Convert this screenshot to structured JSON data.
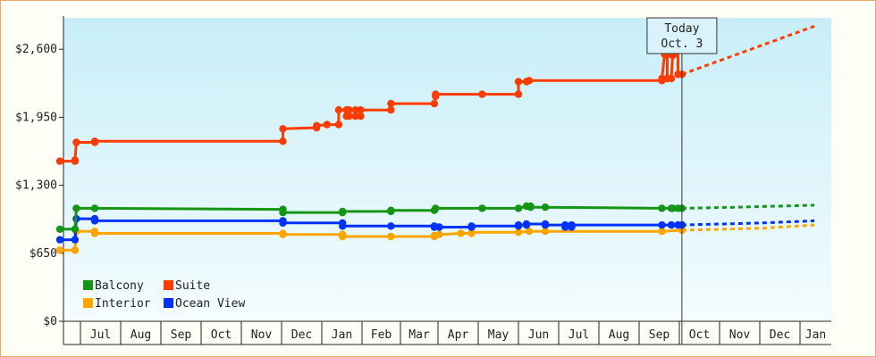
{
  "chart_data": {
    "type": "line",
    "title": "",
    "xlabel": "",
    "ylabel": "",
    "ylim": [
      0,
      2900
    ],
    "y_ticks": [
      {
        "value": 0,
        "label": "$0"
      },
      {
        "value": 650,
        "label": "$650"
      },
      {
        "value": 1300,
        "label": "$1,300"
      },
      {
        "value": 1950,
        "label": "$1,950"
      },
      {
        "value": 2600,
        "label": "$2,600"
      }
    ],
    "x_range_days": [
      -5,
      196
    ],
    "month_ticks": [
      {
        "label": "Jul",
        "day": 0
      },
      {
        "label": "Aug",
        "day": 31
      },
      {
        "label": "Sep",
        "day": 62
      },
      {
        "label": "Oct",
        "day": 92
      },
      {
        "label": "Nov",
        "day": 123
      },
      {
        "label": "Dec",
        "day": 153
      },
      {
        "label": "Jan",
        "day": 184
      },
      {
        "label": "Feb",
        "day": 215
      },
      {
        "label": "Mar",
        "day": 243
      },
      {
        "label": "Apr",
        "day": 274
      },
      {
        "label": "May",
        "day": 304
      },
      {
        "label": "Jun",
        "day": 335
      },
      {
        "label": "Jul",
        "day": 365
      },
      {
        "label": "Aug",
        "day": 396
      },
      {
        "label": "Sep",
        "day": 427
      },
      {
        "label": "Oct",
        "day": 457
      },
      {
        "label": "Nov",
        "day": 488
      },
      {
        "label": "Dec",
        "day": 518
      },
      {
        "label": "Jan",
        "day": 549
      }
    ],
    "today": {
      "line1": "Today",
      "line2": "Oct. 3",
      "day": 459
    },
    "legend": {
      "placement": "bottom-left"
    },
    "grid": false,
    "series": [
      {
        "name": "Suite",
        "color": "#ff3c00",
        "points": [
          [
            -15,
            1530
          ],
          [
            -4,
            1530
          ],
          [
            -4,
            1540
          ],
          [
            -3,
            1710
          ],
          [
            11,
            1710
          ],
          [
            11,
            1720
          ],
          [
            154,
            1720
          ],
          [
            154,
            1840
          ],
          [
            180,
            1850
          ],
          [
            180,
            1870
          ],
          [
            188,
            1880
          ],
          [
            197,
            1880
          ],
          [
            197,
            2020
          ],
          [
            203,
            2020
          ],
          [
            203,
            1960
          ],
          [
            205,
            1960
          ],
          [
            205,
            2020
          ],
          [
            210,
            2020
          ],
          [
            210,
            1960
          ],
          [
            214,
            1960
          ],
          [
            214,
            2020
          ],
          [
            236,
            2020
          ],
          [
            236,
            2080
          ],
          [
            271,
            2080
          ],
          [
            271,
            2080
          ],
          [
            272,
            2150
          ],
          [
            272,
            2170
          ],
          [
            307,
            2170
          ],
          [
            335,
            2170
          ],
          [
            335,
            2290
          ],
          [
            341,
            2290
          ],
          [
            343,
            2300
          ],
          [
            444,
            2300
          ],
          [
            444,
            2320
          ],
          [
            446,
            2550
          ],
          [
            448,
            2550
          ],
          [
            448,
            2320
          ],
          [
            451,
            2320
          ],
          [
            452,
            2540
          ],
          [
            454,
            2560
          ],
          [
            456,
            2610
          ],
          [
            456,
            2360
          ],
          [
            459,
            2360
          ]
        ],
        "forecast": [
          [
            459,
            2360
          ],
          [
            560,
            2820
          ]
        ]
      },
      {
        "name": "Balcony",
        "color": "#149614",
        "points": [
          [
            -15,
            880
          ],
          [
            -4,
            880
          ],
          [
            -3,
            1080
          ],
          [
            11,
            1080
          ],
          [
            11,
            1080
          ],
          [
            154,
            1070
          ],
          [
            154,
            1040
          ],
          [
            200,
            1040
          ],
          [
            200,
            1050
          ],
          [
            236,
            1050
          ],
          [
            236,
            1060
          ],
          [
            271,
            1060
          ],
          [
            272,
            1080
          ],
          [
            307,
            1080
          ],
          [
            335,
            1080
          ],
          [
            335,
            1080
          ],
          [
            341,
            1100
          ],
          [
            344,
            1100
          ],
          [
            344,
            1090
          ],
          [
            355,
            1090
          ],
          [
            355,
            1090
          ],
          [
            444,
            1080
          ],
          [
            444,
            1080
          ],
          [
            451,
            1080
          ],
          [
            452,
            1080
          ],
          [
            456,
            1080
          ],
          [
            459,
            1080
          ]
        ],
        "forecast": [
          [
            459,
            1080
          ],
          [
            500,
            1090
          ],
          [
            560,
            1110
          ]
        ]
      },
      {
        "name": "Interior",
        "color": "#ffa500",
        "points": [
          [
            -15,
            680
          ],
          [
            -4,
            680
          ],
          [
            -3,
            860
          ],
          [
            11,
            860
          ],
          [
            11,
            840
          ],
          [
            154,
            840
          ],
          [
            154,
            830
          ],
          [
            200,
            830
          ],
          [
            200,
            810
          ],
          [
            236,
            810
          ],
          [
            236,
            810
          ],
          [
            271,
            810
          ],
          [
            271,
            820
          ],
          [
            275,
            830
          ],
          [
            275,
            830
          ],
          [
            291,
            840
          ],
          [
            299,
            840
          ],
          [
            299,
            850
          ],
          [
            335,
            850
          ],
          [
            335,
            850
          ],
          [
            343,
            860
          ],
          [
            355,
            860
          ],
          [
            355,
            860
          ],
          [
            444,
            860
          ],
          [
            459,
            870
          ]
        ],
        "forecast": [
          [
            459,
            870
          ],
          [
            520,
            890
          ],
          [
            560,
            920
          ]
        ]
      },
      {
        "name": "Ocean View",
        "color": "#0032ff",
        "points": [
          [
            -15,
            780
          ],
          [
            -4,
            780
          ],
          [
            -3,
            980
          ],
          [
            11,
            980
          ],
          [
            11,
            960
          ],
          [
            154,
            960
          ],
          [
            154,
            940
          ],
          [
            200,
            940
          ],
          [
            200,
            910
          ],
          [
            236,
            910
          ],
          [
            236,
            910
          ],
          [
            271,
            910
          ],
          [
            271,
            900
          ],
          [
            275,
            900
          ],
          [
            275,
            900
          ],
          [
            299,
            900
          ],
          [
            299,
            910
          ],
          [
            335,
            910
          ],
          [
            335,
            920
          ],
          [
            341,
            920
          ],
          [
            341,
            930
          ],
          [
            355,
            930
          ],
          [
            355,
            920
          ],
          [
            370,
            920
          ],
          [
            370,
            900
          ],
          [
            375,
            900
          ],
          [
            375,
            920
          ],
          [
            444,
            920
          ],
          [
            444,
            920
          ],
          [
            451,
            920
          ],
          [
            456,
            920
          ],
          [
            459,
            920
          ]
        ],
        "forecast": [
          [
            459,
            920
          ],
          [
            520,
            940
          ],
          [
            560,
            960
          ]
        ]
      }
    ]
  }
}
